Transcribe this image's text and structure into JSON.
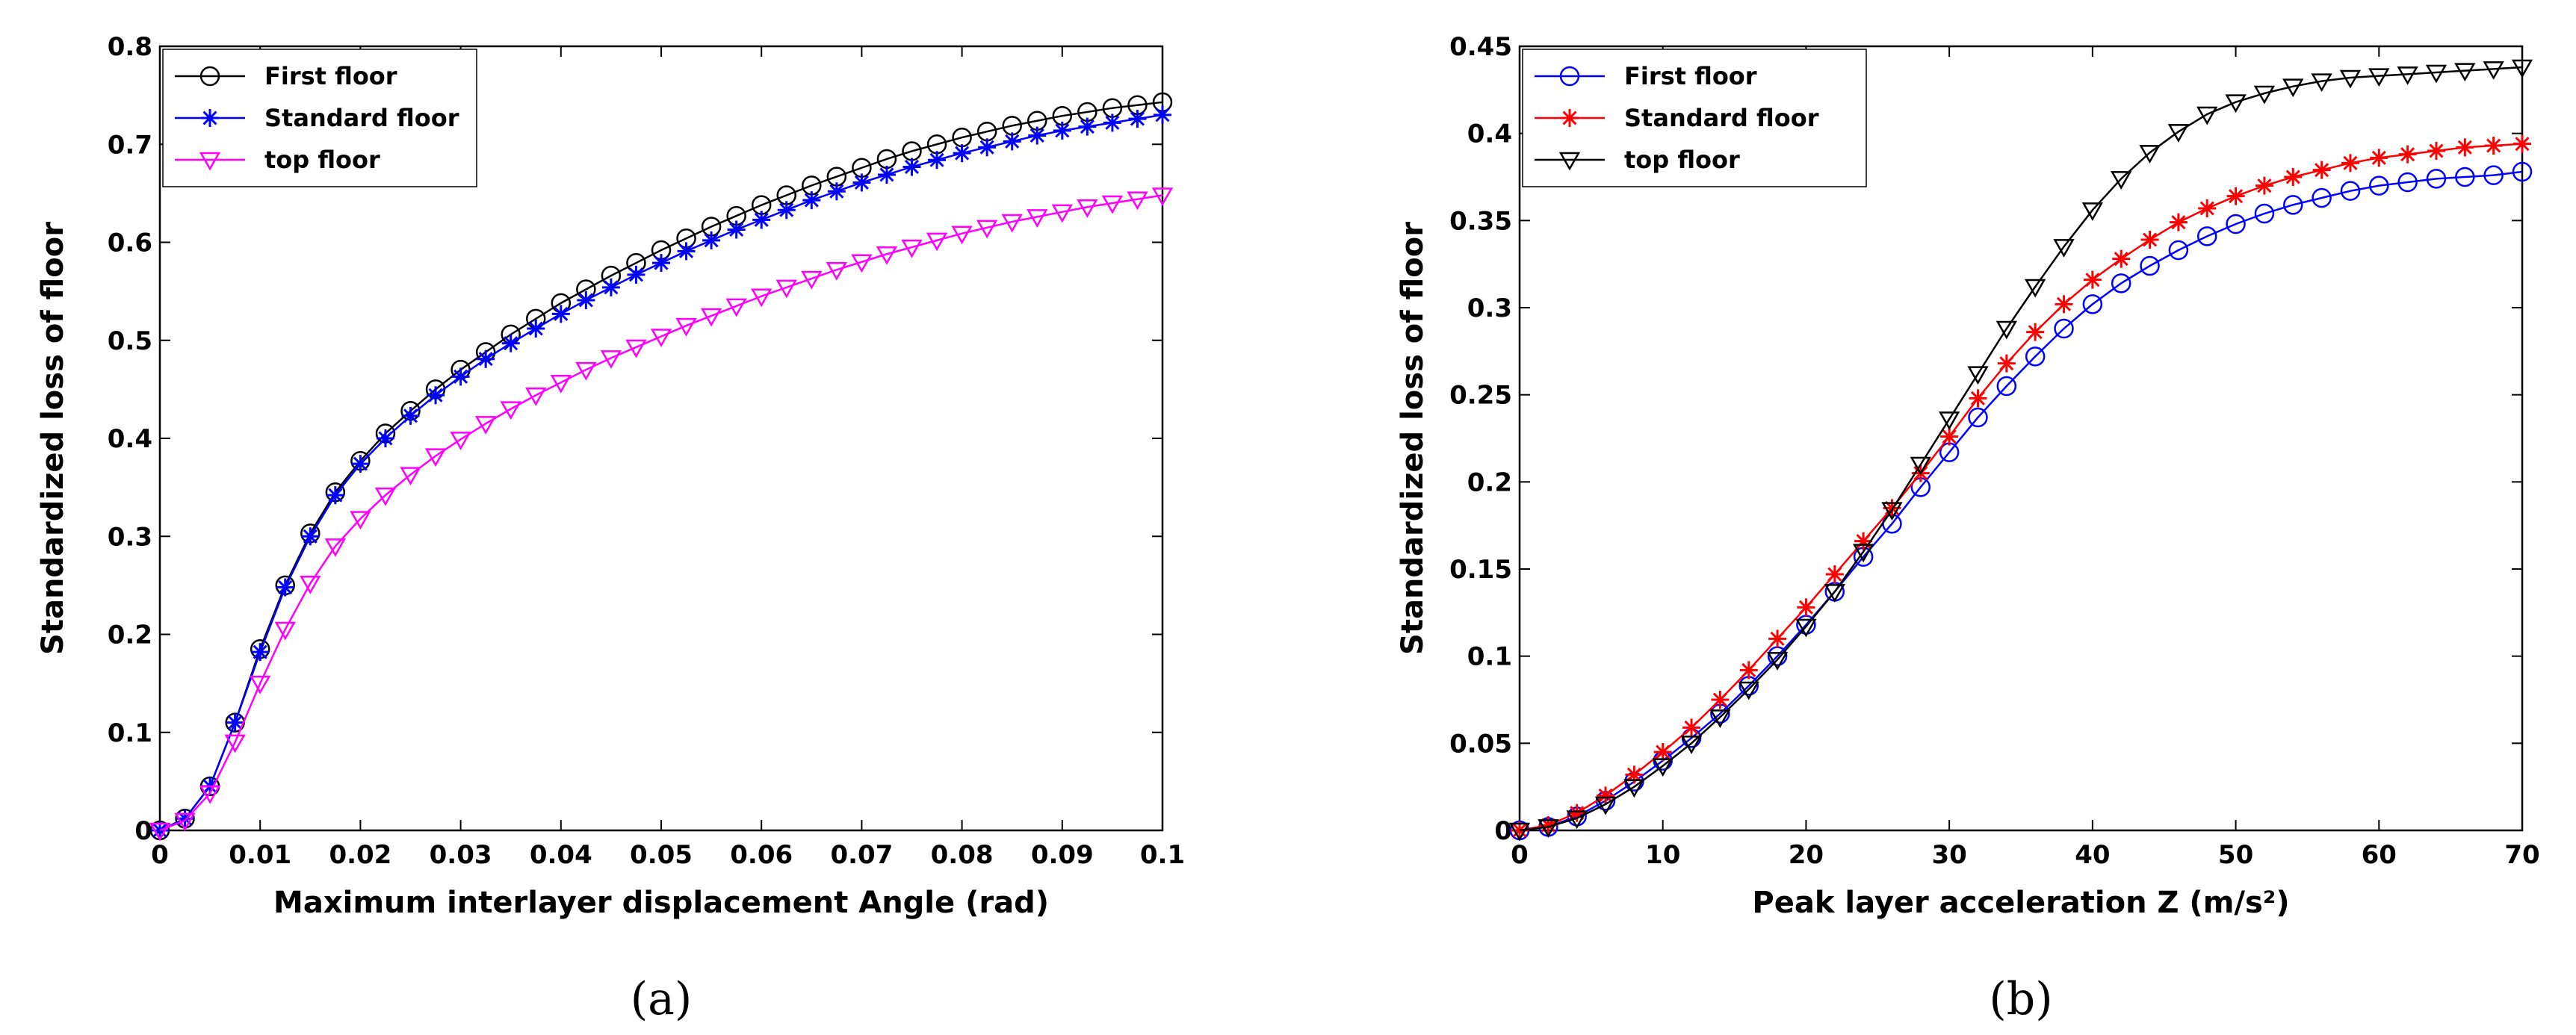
{
  "chart_data": [
    {
      "type": "line",
      "caption": "(a)",
      "xlabel": "Maximum interlayer displacement Angle (rad)",
      "ylabel": "Standardized loss of floor",
      "xlim": [
        0,
        0.1
      ],
      "ylim": [
        0,
        0.8
      ],
      "xticks": [
        "0",
        "0.01",
        "0.02",
        "0.03",
        "0.04",
        "0.05",
        "0.06",
        "0.07",
        "0.08",
        "0.09",
        "0.1"
      ],
      "yticks": [
        "0",
        "0.1",
        "0.2",
        "0.3",
        "0.4",
        "0.5",
        "0.6",
        "0.7",
        "0.8"
      ],
      "legend_position": "top-left",
      "x": [
        0,
        0.0025,
        0.005,
        0.0075,
        0.01,
        0.0125,
        0.015,
        0.0175,
        0.02,
        0.0225,
        0.025,
        0.0275,
        0.03,
        0.0325,
        0.035,
        0.0375,
        0.04,
        0.0425,
        0.045,
        0.0475,
        0.05,
        0.0525,
        0.055,
        0.0575,
        0.06,
        0.0625,
        0.065,
        0.0675,
        0.07,
        0.0725,
        0.075,
        0.0775,
        0.08,
        0.0825,
        0.085,
        0.0875,
        0.09,
        0.0925,
        0.095,
        0.0975,
        0.1
      ],
      "series": [
        {
          "name": "First floor",
          "color": "#000000",
          "marker": "circle",
          "values": [
            0.0,
            0.012,
            0.045,
            0.11,
            0.185,
            0.25,
            0.303,
            0.345,
            0.377,
            0.405,
            0.428,
            0.45,
            0.47,
            0.488,
            0.506,
            0.522,
            0.538,
            0.552,
            0.566,
            0.579,
            0.592,
            0.604,
            0.616,
            0.627,
            0.638,
            0.648,
            0.658,
            0.667,
            0.676,
            0.685,
            0.693,
            0.7,
            0.707,
            0.713,
            0.719,
            0.724,
            0.729,
            0.733,
            0.737,
            0.74,
            0.743
          ]
        },
        {
          "name": "Standard floor",
          "color": "#0000ff",
          "marker": "star",
          "values": [
            0.0,
            0.012,
            0.045,
            0.11,
            0.182,
            0.248,
            0.3,
            0.342,
            0.374,
            0.4,
            0.423,
            0.444,
            0.463,
            0.481,
            0.497,
            0.512,
            0.527,
            0.541,
            0.554,
            0.567,
            0.579,
            0.591,
            0.602,
            0.613,
            0.623,
            0.633,
            0.643,
            0.652,
            0.661,
            0.669,
            0.677,
            0.684,
            0.691,
            0.697,
            0.703,
            0.709,
            0.714,
            0.718,
            0.722,
            0.726,
            0.73
          ]
        },
        {
          "name": "top floor",
          "color": "#ff00ff",
          "marker": "triangle-down",
          "values": [
            0.0,
            0.01,
            0.038,
            0.09,
            0.15,
            0.205,
            0.252,
            0.29,
            0.318,
            0.342,
            0.363,
            0.382,
            0.399,
            0.415,
            0.43,
            0.444,
            0.457,
            0.47,
            0.482,
            0.493,
            0.504,
            0.515,
            0.525,
            0.535,
            0.545,
            0.554,
            0.563,
            0.572,
            0.58,
            0.588,
            0.595,
            0.602,
            0.609,
            0.615,
            0.621,
            0.626,
            0.631,
            0.636,
            0.64,
            0.644,
            0.648
          ]
        }
      ]
    },
    {
      "type": "line",
      "caption": "(b)",
      "xlabel": "Peak layer acceleration Z (m/s²)",
      "ylabel": "Standardized loss of floor",
      "xlim": [
        0,
        70
      ],
      "ylim": [
        0,
        0.45
      ],
      "xticks": [
        "0",
        "10",
        "20",
        "30",
        "40",
        "50",
        "60",
        "70"
      ],
      "yticks": [
        "0",
        "0.05",
        "0.1",
        "0.15",
        "0.2",
        "0.25",
        "0.3",
        "0.35",
        "0.4",
        "0.45"
      ],
      "legend_position": "top-left",
      "x": [
        0,
        2,
        4,
        6,
        8,
        10,
        12,
        14,
        16,
        18,
        20,
        22,
        24,
        26,
        28,
        30,
        32,
        34,
        36,
        38,
        40,
        42,
        44,
        46,
        48,
        50,
        52,
        54,
        56,
        58,
        60,
        62,
        64,
        66,
        68,
        70
      ],
      "series": [
        {
          "name": "First floor",
          "color": "#0000ff",
          "marker": "circle",
          "values": [
            0.0,
            0.002,
            0.008,
            0.017,
            0.028,
            0.04,
            0.053,
            0.067,
            0.083,
            0.1,
            0.118,
            0.137,
            0.157,
            0.176,
            0.197,
            0.217,
            0.237,
            0.255,
            0.272,
            0.288,
            0.302,
            0.314,
            0.324,
            0.333,
            0.341,
            0.348,
            0.354,
            0.359,
            0.363,
            0.367,
            0.37,
            0.372,
            0.374,
            0.375,
            0.376,
            0.378
          ]
        },
        {
          "name": "Standard floor",
          "color": "#ff0000",
          "marker": "star",
          "values": [
            0.0,
            0.003,
            0.01,
            0.02,
            0.032,
            0.045,
            0.059,
            0.075,
            0.092,
            0.11,
            0.128,
            0.147,
            0.166,
            0.185,
            0.205,
            0.226,
            0.248,
            0.268,
            0.286,
            0.302,
            0.316,
            0.328,
            0.339,
            0.349,
            0.357,
            0.364,
            0.37,
            0.375,
            0.379,
            0.383,
            0.386,
            0.388,
            0.39,
            0.392,
            0.393,
            0.394
          ]
        },
        {
          "name": "top floor",
          "color": "#000000",
          "marker": "triangle-down",
          "values": [
            0.0,
            0.002,
            0.007,
            0.015,
            0.025,
            0.037,
            0.05,
            0.065,
            0.081,
            0.098,
            0.117,
            0.137,
            0.16,
            0.184,
            0.21,
            0.236,
            0.262,
            0.288,
            0.312,
            0.335,
            0.356,
            0.374,
            0.389,
            0.401,
            0.411,
            0.418,
            0.423,
            0.427,
            0.43,
            0.432,
            0.433,
            0.434,
            0.435,
            0.436,
            0.437,
            0.438
          ]
        }
      ]
    }
  ]
}
